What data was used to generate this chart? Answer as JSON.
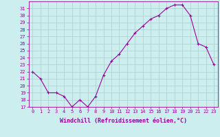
{
  "x": [
    0,
    1,
    2,
    3,
    4,
    5,
    6,
    7,
    8,
    9,
    10,
    11,
    12,
    13,
    14,
    15,
    16,
    17,
    18,
    19,
    20,
    21,
    22,
    23
  ],
  "y": [
    22,
    21,
    19,
    19,
    18.5,
    17,
    18,
    17,
    18.5,
    21.5,
    23.5,
    24.5,
    26,
    27.5,
    28.5,
    29.5,
    30,
    31,
    31.5,
    31.5,
    30,
    26,
    25.5,
    23
  ],
  "line_color": "#990099",
  "marker": "+",
  "bg_color": "#cceeee",
  "grid_color": "#aacccc",
  "xlabel": "Windchill (Refroidissement éolien,°C)",
  "ylim": [
    17,
    32
  ],
  "xlim": [
    -0.5,
    23.5
  ],
  "yticks": [
    17,
    18,
    19,
    20,
    21,
    22,
    23,
    24,
    25,
    26,
    27,
    28,
    29,
    30,
    31
  ],
  "xticks": [
    0,
    1,
    2,
    3,
    4,
    5,
    6,
    7,
    8,
    9,
    10,
    11,
    12,
    13,
    14,
    15,
    16,
    17,
    18,
    19,
    20,
    21,
    22,
    23
  ],
  "tick_color": "#990099",
  "label_color": "#990099",
  "spine_color": "#990099",
  "axis_fontsize": 5.5,
  "tick_fontsize": 5.0,
  "xlabel_fontsize": 6.0,
  "line_width": 0.8,
  "marker_size": 3,
  "marker_edge_width": 0.8
}
